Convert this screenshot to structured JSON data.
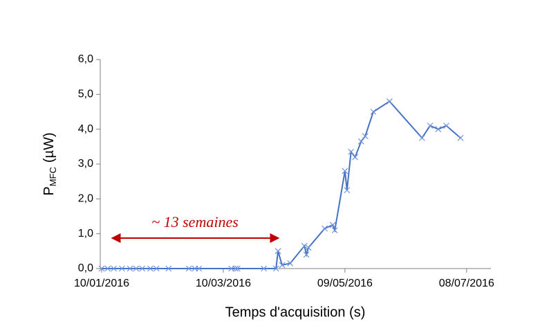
{
  "chart_data": {
    "type": "line",
    "x_label": "Temps d'acquisition (s)",
    "y_label": {
      "main": "P",
      "subscript": "MFC",
      "unit": "(µW)"
    },
    "annotation": "~ 13 semaines",
    "x": [
      "2016-01-10",
      "2016-01-13",
      "2016-01-16",
      "2016-01-20",
      "2016-01-24",
      "2016-01-27",
      "2016-01-30",
      "2016-02-03",
      "2016-02-06",
      "2016-02-12",
      "2016-02-22",
      "2016-02-25",
      "2016-02-27",
      "2016-03-14",
      "2016-03-16",
      "2016-03-17",
      "2016-03-30",
      "2016-04-05",
      "2016-04-06",
      "2016-04-08",
      "2016-04-12",
      "2016-04-19",
      "2016-04-20",
      "2016-04-21",
      "2016-04-29",
      "2016-05-03",
      "2016-05-04",
      "2016-05-09",
      "2016-05-10",
      "2016-05-12",
      "2016-05-14",
      "2016-05-17",
      "2016-05-19",
      "2016-05-23",
      "2016-05-31",
      "2016-06-16",
      "2016-06-20",
      "2016-06-24",
      "2016-06-28",
      "2016-07-05"
    ],
    "series": [
      {
        "color": "#4472c4",
        "marker_color": "#6f8fd6",
        "values": [
          0,
          0,
          0,
          0,
          0,
          0,
          0,
          0,
          0,
          0,
          0,
          0,
          0,
          0,
          0,
          0,
          0,
          0,
          0.5,
          0.1,
          0.15,
          0.65,
          0.4,
          0.6,
          1.15,
          1.25,
          1.1,
          2.8,
          2.25,
          3.35,
          3.2,
          3.65,
          3.8,
          4.5,
          4.8,
          3.75,
          4.1,
          4.0,
          4.1,
          3.75
        ]
      }
    ],
    "xlim": [
      "2016-01-10",
      "2016-07-20"
    ],
    "xticks": [
      {
        "value": "2016-01-10",
        "label": "10/01/2016"
      },
      {
        "value": "2016-03-10",
        "label": "10/03/2016"
      },
      {
        "value": "2016-05-09",
        "label": "09/05/2016"
      },
      {
        "value": "2016-07-08",
        "label": "08/07/2016"
      }
    ],
    "ylim": [
      0,
      6
    ],
    "yticks": [
      {
        "value": 0,
        "label": "0,0"
      },
      {
        "value": 1,
        "label": "1,0"
      },
      {
        "value": 2,
        "label": "2,0"
      },
      {
        "value": 3,
        "label": "3,0"
      },
      {
        "value": 4,
        "label": "4,0"
      },
      {
        "value": 5,
        "label": "5,0"
      },
      {
        "value": 6,
        "label": "6,0"
      }
    ],
    "grid": false
  }
}
